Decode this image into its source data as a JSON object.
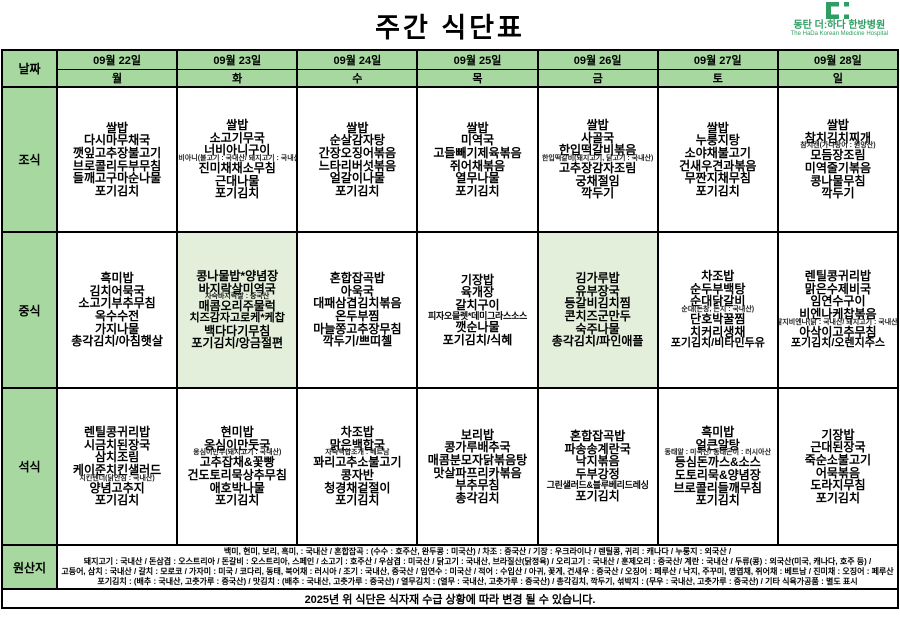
{
  "title": "주간 식단표",
  "hospital": {
    "name": "동탄 더:하다 한방병원",
    "subtitle": "The HaDa Korean Medicine Hospital"
  },
  "colors": {
    "header_green": "#a6d8a0",
    "highlight_green": "#e3efda",
    "brand_green": "#2f9e63",
    "border": "#000000"
  },
  "header": {
    "date_label": "날짜",
    "days": [
      {
        "date": "09월 22일",
        "day": "월"
      },
      {
        "date": "09월 23일",
        "day": "화"
      },
      {
        "date": "09월 24일",
        "day": "수"
      },
      {
        "date": "09월 25일",
        "day": "목"
      },
      {
        "date": "09월 26일",
        "day": "금"
      },
      {
        "date": "09월 27일",
        "day": "토"
      },
      {
        "date": "09월 28일",
        "day": "일"
      }
    ]
  },
  "meals": [
    {
      "label": "조식",
      "row_class": "h-break",
      "cells": [
        {
          "items": [
            "쌀밥",
            "다시마무채국",
            "깻잎고추장불고기",
            "브로콜리두부무침",
            "들깨고구마순나물",
            "포기김치"
          ]
        },
        {
          "items": [
            "쌀밥",
            "소고기무국",
            {
              "t": "너비아니구이",
              "s": "너비아니(불고기 : 국내산/ 돼지고기 : 국내산)"
            },
            "진미채채소무침",
            "근대나물",
            "포기김치"
          ]
        },
        {
          "items": [
            "쌀밥",
            "순살감자탕",
            "간장오징어볶음",
            "느타리버섯볶음",
            "얼갈이나물",
            "포기김치"
          ]
        },
        {
          "items": [
            "쌀밥",
            "미역국",
            "고들빼기제육볶음",
            "쥐어채볶음",
            "열무나물",
            "포기김치"
          ]
        },
        {
          "items": [
            "쌀밥",
            "사골국",
            {
              "t": "한입떡갈비볶음",
              "s": "한입떡갈비(돼지고기, 닭고기 : 국내산)"
            },
            "고추장감자조림",
            "궁채절임",
            "깍두기"
          ]
        },
        {
          "items": [
            "쌀밥",
            "누룽지탕",
            "소야채불고기",
            "건새우견과볶음",
            "무짠지채무침",
            "포기김치"
          ]
        },
        {
          "items": [
            "쌀밥",
            {
              "t": "참치김치찌개",
              "s": "참치캔(가다랑어 : 원양산)"
            },
            "모듬장조림",
            "미역줄기볶음",
            "콩나물무침",
            "깍두기"
          ]
        }
      ]
    },
    {
      "label": "중식",
      "row_class": "h-lunch",
      "cells": [
        {
          "items": [
            "흑미밥",
            "김치어묵국",
            "소고기부추무침",
            "옥수수전",
            "가지나물",
            "총각김치/아침햇살"
          ]
        },
        {
          "hl": true,
          "items": [
            "콩나물밥*양념장",
            {
              "t": "바지락살미역국",
              "s": "자숙바지락살 : 중국산"
            },
            "매콤오리주물럭",
            "치즈감자고로케*케찹",
            "백다다기무침",
            "포기김치/앙금절편"
          ]
        },
        {
          "items": [
            "혼합잡곡밥",
            "아욱국",
            "대패삼겹김치볶음",
            "온두부찜",
            "마늘쫑고추장무침",
            "깍두기/쁘띠첼"
          ]
        },
        {
          "items": [
            "기장밥",
            "육개장",
            "갈치구이",
            "피자오믈렛*데미그라스소스",
            "깻순나물",
            "포기김치/식혜"
          ]
        },
        {
          "hl": true,
          "items": [
            "김가루밥",
            "유부장국",
            "등갈비김치찜",
            "콘치즈군만두",
            "숙주나물",
            "총각김치/파인애플"
          ]
        },
        {
          "items": [
            "차조밥",
            "순두부백탕",
            {
              "t": "순대닭갈비",
              "s": "순대(돈창, 돈지 : 국내산)"
            },
            "단호박꿀찜",
            "치커리생채",
            "포기김치/비타민두유"
          ]
        },
        {
          "items": [
            "렌틸콩귀리밥",
            "맑은수제비국",
            "임연수구이",
            {
              "t": "비엔나케찹볶음",
              "s": "탈지비엔나(닭 : 국내산/ 돼지고기 : 국내산)"
            },
            "아삭이고추무침",
            "포기김치/오렌지주스"
          ]
        }
      ]
    },
    {
      "label": "석식",
      "row_class": "h-dinner",
      "cells": [
        {
          "items": [
            "렌틸콩귀리밥",
            "시금치된장국",
            "삼치조림",
            {
              "t": "케이준치킨샐러드",
              "s": "치킨텐더(닭안심 : 국내산)"
            },
            "양념고추지",
            "포기김치"
          ]
        },
        {
          "items": [
            "현미밥",
            {
              "t": "옹심이만둣국",
              "s": "옹심이만두(돼지고기 : 국내산)"
            },
            "고추잡채&꽃빵",
            "건도토리묵상추무침",
            "애호박나물",
            "포기김치"
          ]
        },
        {
          "items": [
            "차조밥",
            {
              "t": "맑은백합국",
              "s": "자숙백합조개 : 베트남"
            },
            "꽈리고추소불고기",
            "콩자반",
            "청경채겉절이",
            "포기김치"
          ]
        },
        {
          "items": [
            "보리밥",
            "콩가루배추국",
            "매콤분모자닭볶음탕",
            "맛살파프리카볶음",
            "부추무침",
            "총각김치"
          ]
        },
        {
          "items": [
            "혼합잡곡밥",
            "파송송계란국",
            "낙지볶음",
            "두부강정",
            "그린샐러드&블루베리드레싱",
            "포기김치"
          ]
        },
        {
          "items": [
            "흑미밥",
            {
              "t": "얼큰알탕",
              "s": "동태알 : 미국산/ 동태곤이 : 러시아산"
            },
            "등심돈까스&소스",
            "도토리묵&양념장",
            "브로콜리들깨무침",
            "포기김치"
          ]
        },
        {
          "items": [
            "기장밥",
            "근대된장국",
            "죽순소불고기",
            "어묵볶음",
            "도라지무침",
            "포기김치"
          ]
        }
      ]
    }
  ],
  "origins": {
    "label": "원산지",
    "lines": [
      "백미, 현미, 보리, 흑미, : 국내산 / 혼합잡곡 : (수수 : 호주산, 완두콩 : 미국산) / 차조 : 중국산 / 기장 : 우크라이나 / 렌틸콩, 귀리 : 캐나다 / 누룽지 : 외국산 /",
      "돼지고기 : 국내산 / 돈삼겹 : 오스트리아 / 돈갈비 : 오스트리아, 스페인 / 소고기 : 호주산 / 우삼겹 : 미국산 / 닭고기 : 국내산, 브라질산(닭정육) / 오리고기 : 국내산 / 훈제오리 : 중국산/ 계란 : 국내산 / 두류(콩) : 외국산(미국, 캐나다, 호주 등) /",
      "고등어, 삼치 : 국내산 / 갈치 : 모로코 / 가자미 : 미국 / 코다리, 동태, 북어채 : 러시아 / 조기 : 국내산, 중국산 / 임연수 : 미국산 / 적어 : 수입산 / 아귀, 꽃게, 건새우 : 중국산 / 오징어 : 페루산 / 낙지, 주꾸미, 명엽채, 쥐어채 : 베트남 / 진미채 : 오징어 : 페루산",
      "포기김치 : (배추 : 국내산, 고춧가루 : 중국산) / 맛김치 : (배추 : 국내산, 고춧가루 : 중국산) / 열무김치 : (열무 : 국내산, 고춧가루 : 중국산) / 총각김치, 깍두기, 섞박지 : (무우 : 국내산, 고춧가루 : 중국산) / 기타 식육가공품 : 별도 표시"
    ]
  },
  "note": "2025년 위 식단은 식자재 수급 상황에 따라 변경 될 수 있습니다."
}
